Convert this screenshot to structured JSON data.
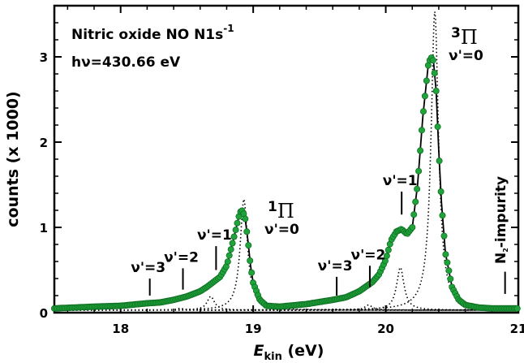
{
  "chart_data": {
    "type": "scatter",
    "title": "Nitric oxide NO N1s",
    "title_superscript": "-1",
    "photon_energy_label": "hν=430.66 eV",
    "xlabel": "E",
    "xlabel_subscript": "kin",
    "xlabel_unit": " (eV)",
    "ylabel": "counts (x 1000)",
    "xlim": [
      17.5,
      21.0
    ],
    "ylim": [
      0,
      3.6
    ],
    "xticks": [
      "18",
      "19",
      "20",
      "21"
    ],
    "yticks": [
      "0",
      "1",
      "2",
      "3"
    ],
    "grid": false,
    "colors": {
      "data": "#1fa33a",
      "data_edge": "#0e6e22",
      "fit": "#000000"
    },
    "series": [
      {
        "name": "",
        "style": "green-circles",
        "x": [
          17.5,
          17.8,
          18.0,
          18.2,
          18.3,
          18.4,
          18.5,
          18.6,
          18.65,
          18.7,
          18.75,
          18.8,
          18.85,
          18.88,
          18.9,
          18.92,
          18.94,
          18.96,
          18.98,
          19.0,
          19.05,
          19.1,
          19.2,
          19.4,
          19.6,
          19.7,
          19.8,
          19.9,
          19.95,
          20.0,
          20.04,
          20.08,
          20.12,
          20.16,
          20.2,
          20.24,
          20.28,
          20.32,
          20.34,
          20.36,
          20.38,
          20.4,
          20.42,
          20.45,
          20.5,
          20.55,
          20.6,
          20.7,
          20.8,
          20.9,
          21.0
        ],
        "y": [
          0.05,
          0.07,
          0.08,
          0.11,
          0.12,
          0.15,
          0.19,
          0.25,
          0.3,
          0.36,
          0.42,
          0.55,
          0.85,
          1.05,
          1.18,
          1.2,
          1.1,
          0.85,
          0.55,
          0.35,
          0.15,
          0.08,
          0.07,
          0.1,
          0.15,
          0.18,
          0.25,
          0.36,
          0.45,
          0.62,
          0.85,
          0.95,
          0.98,
          0.92,
          1.0,
          1.5,
          2.3,
          2.9,
          3.0,
          2.95,
          2.6,
          1.9,
          1.3,
          0.7,
          0.3,
          0.15,
          0.09,
          0.06,
          0.05,
          0.05,
          0.05
        ]
      },
      {
        "name": "",
        "style": "solid-fit",
        "x": [
          17.5,
          17.8,
          18.0,
          18.2,
          18.3,
          18.4,
          18.5,
          18.6,
          18.65,
          18.7,
          18.75,
          18.8,
          18.85,
          18.88,
          18.9,
          18.92,
          18.94,
          18.96,
          18.98,
          19.0,
          19.05,
          19.1,
          19.2,
          19.4,
          19.6,
          19.7,
          19.8,
          19.9,
          19.95,
          20.0,
          20.04,
          20.08,
          20.12,
          20.16,
          20.2,
          20.24,
          20.28,
          20.32,
          20.34,
          20.36,
          20.38,
          20.4,
          20.42,
          20.45,
          20.5,
          20.55,
          20.6,
          20.7,
          20.8,
          20.9,
          21.0
        ],
        "y": [
          0.05,
          0.07,
          0.08,
          0.11,
          0.12,
          0.15,
          0.19,
          0.25,
          0.3,
          0.36,
          0.42,
          0.55,
          0.85,
          1.05,
          1.18,
          1.2,
          1.1,
          0.85,
          0.55,
          0.35,
          0.15,
          0.08,
          0.07,
          0.1,
          0.15,
          0.18,
          0.25,
          0.36,
          0.45,
          0.62,
          0.85,
          0.95,
          0.98,
          0.92,
          1.0,
          1.5,
          2.3,
          2.9,
          3.0,
          2.95,
          2.6,
          1.9,
          1.3,
          0.7,
          0.3,
          0.15,
          0.09,
          0.06,
          0.05,
          0.05,
          0.05
        ]
      },
      {
        "name": "",
        "style": "dotted",
        "peak": 18.93,
        "height": 1.3,
        "width": 0.05
      },
      {
        "name": "",
        "style": "dotted",
        "peak": 18.68,
        "height": 0.16,
        "width": 0.05
      },
      {
        "name": "",
        "style": "dotted",
        "peak": 18.45,
        "height": 0.02,
        "width": 0.05
      },
      {
        "name": "",
        "style": "dotted",
        "peak": 20.37,
        "height": 3.5,
        "width": 0.05
      },
      {
        "name": "",
        "style": "dotted",
        "peak": 20.11,
        "height": 0.5,
        "width": 0.05
      },
      {
        "name": "",
        "style": "dotted",
        "peak": 19.87,
        "height": 0.06,
        "width": 0.05
      },
      {
        "name": "",
        "style": "dotted",
        "peak": 19.63,
        "height": 0.01,
        "width": 0.05
      }
    ],
    "markers": [
      {
        "label": "ν'=3",
        "x": 18.22,
        "y_bottom": 0.2,
        "y_top": 0.4
      },
      {
        "label": "ν'=2",
        "x": 18.47,
        "y_bottom": 0.27,
        "y_top": 0.52
      },
      {
        "label": "ν'=1",
        "x": 18.72,
        "y_bottom": 0.5,
        "y_top": 0.78
      },
      {
        "label": "ν'=3",
        "x": 19.63,
        "y_bottom": 0.2,
        "y_top": 0.42
      },
      {
        "label": "ν'=2",
        "x": 19.88,
        "y_bottom": 0.3,
        "y_top": 0.55
      },
      {
        "label": "ν'=1",
        "x": 20.12,
        "y_bottom": 1.15,
        "y_top": 1.42
      }
    ],
    "state_labels": [
      {
        "term": "Π",
        "multiplicity": "1",
        "nu": "ν'=0"
      },
      {
        "term": "Π",
        "multiplicity": "3",
        "nu": "ν'=0"
      }
    ],
    "impurity": {
      "label": "N",
      "subscript": "2",
      "suffix": "-impurity",
      "x": 20.9
    }
  }
}
